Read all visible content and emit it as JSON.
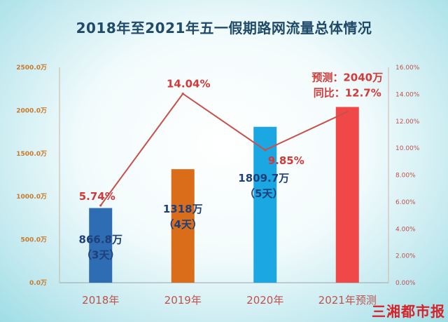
{
  "title": "2018年至2021年五一假期路网流量总体情况",
  "watermark": "三湘都市报",
  "chart_data": {
    "type": "bar",
    "title": "2018年至2021年五一假期路网流量总体情况",
    "categories": [
      "2018年",
      "2019年",
      "2020年",
      "2021年预测"
    ],
    "series": [
      {
        "values": [
          866.8,
          1318,
          1809.7,
          2040
        ],
        "bar_labels": [
          [
            "866.8万",
            "（3天）"
          ],
          [
            "1318万",
            "（4天）"
          ],
          [
            "1809.7万",
            "（5天）"
          ],
          [
            "预测：2040万",
            "同比：12.7%"
          ]
        ],
        "colors": [
          "#2e6db3",
          "#d96d1a",
          "#1aa7e2",
          "#f04848"
        ],
        "axis": "left"
      },
      {
        "type": "line",
        "values": [
          5.74,
          14.04,
          9.85,
          12.7
        ],
        "point_labels": [
          "5.74%",
          "14.04%",
          "9.85%",
          ""
        ],
        "color": "#c8504a",
        "axis": "right"
      }
    ],
    "y_left": {
      "ylim": [
        0,
        2500
      ],
      "ticks": [
        "0.0万",
        "500.0万",
        "1000.0万",
        "1500.0万",
        "2000.0万",
        "2500.0万"
      ]
    },
    "y_right": {
      "ylim": [
        0,
        16
      ],
      "ticks": [
        "0.00%",
        "2.00%",
        "4.00%",
        "6.00%",
        "8.00%",
        "10.00%",
        "12.00%",
        "14.00%",
        "16.00%"
      ]
    },
    "grid": false,
    "legend": "none"
  }
}
